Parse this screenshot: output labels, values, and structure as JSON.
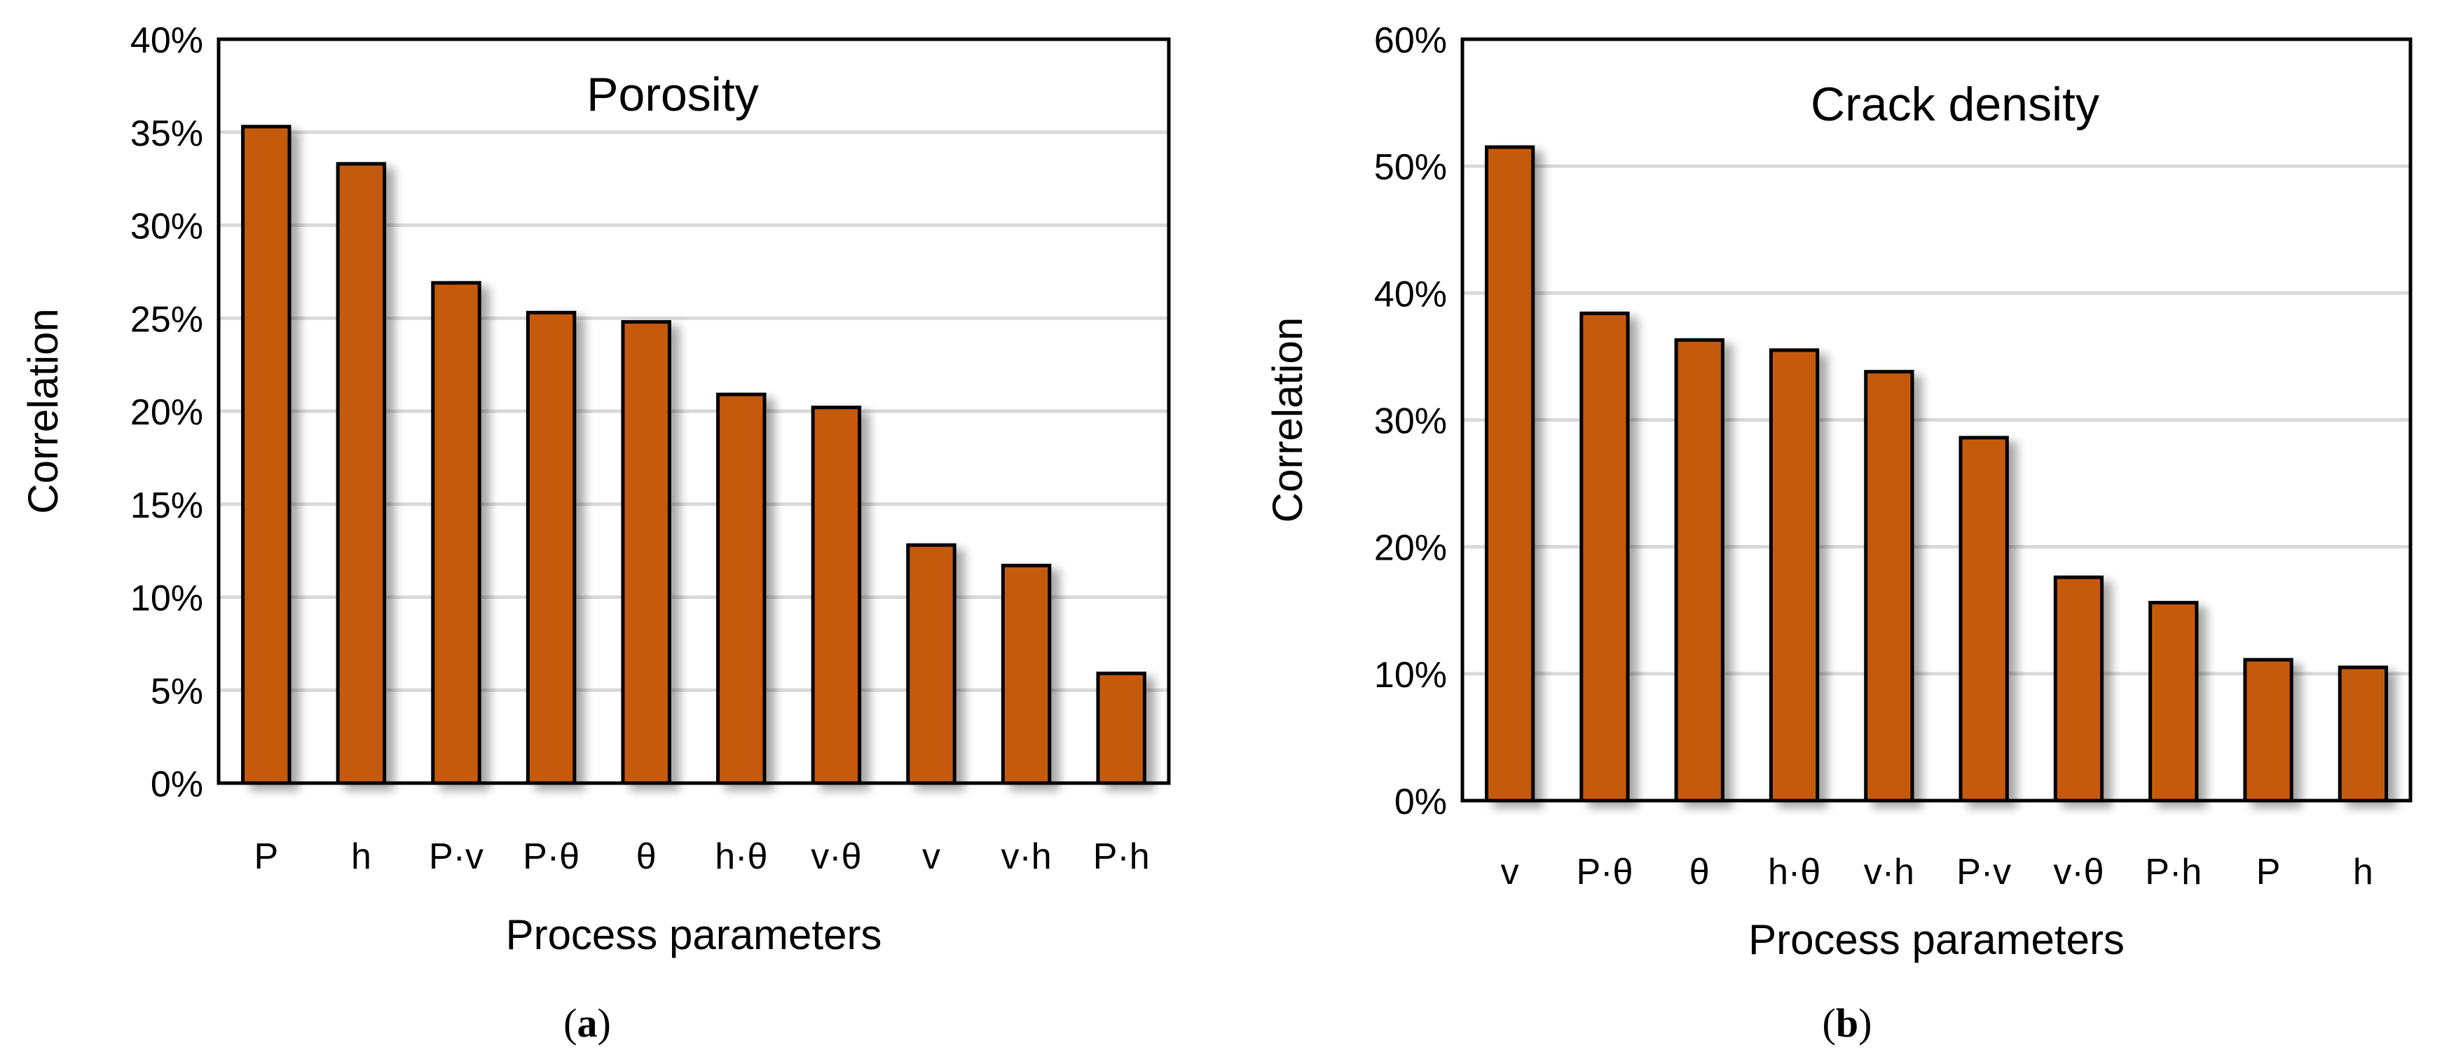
{
  "chart_data": [
    {
      "type": "bar",
      "title": "Porosity",
      "xlabel": "Process parameters",
      "ylabel": "Correlation",
      "caption_letter": "a",
      "categories": [
        "P",
        "h",
        "P·v",
        "P·θ",
        "θ",
        "h·θ",
        "v·θ",
        "v",
        "v·h",
        "P·h"
      ],
      "values": [
        35.3,
        33.3,
        26.9,
        25.3,
        24.8,
        20.9,
        20.2,
        12.8,
        11.7,
        5.9
      ],
      "ylim": [
        0,
        40
      ],
      "yticks": [
        0,
        5,
        10,
        15,
        20,
        25,
        30,
        35,
        40
      ],
      "ytick_labels": [
        "0%",
        "5%",
        "10%",
        "15%",
        "20%",
        "25%",
        "30%",
        "35%",
        "40%"
      ],
      "grid": true,
      "bar_color": "#C55A11"
    },
    {
      "type": "bar",
      "title": "Crack density",
      "xlabel": "Process parameters",
      "ylabel": "Correlation",
      "caption_letter": "b",
      "categories": [
        "v",
        "P·θ",
        "θ",
        "h·θ",
        "v·h",
        "P·v",
        "v·θ",
        "P·h",
        "P",
        "h"
      ],
      "values": [
        51.5,
        38.4,
        36.3,
        35.5,
        33.8,
        28.6,
        17.6,
        15.6,
        11.1,
        10.5
      ],
      "ylim": [
        0,
        60
      ],
      "yticks": [
        0,
        10,
        20,
        30,
        40,
        50,
        60
      ],
      "ytick_labels": [
        "0%",
        "10%",
        "20%",
        "30%",
        "40%",
        "50%",
        "60%"
      ],
      "grid": true,
      "bar_color": "#C55A11"
    }
  ]
}
